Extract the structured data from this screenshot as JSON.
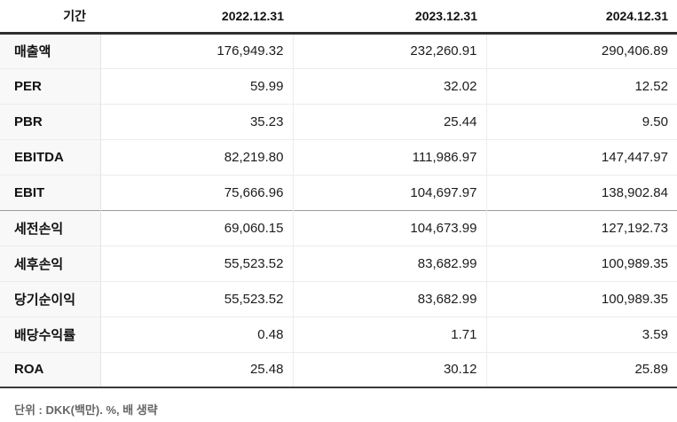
{
  "table": {
    "header": {
      "period_label": "기간",
      "columns": [
        "2022.12.31",
        "2023.12.31",
        "2024.12.31"
      ]
    },
    "rows": [
      {
        "label": "매출액",
        "values": [
          "176,949.32",
          "232,260.91",
          "290,406.89"
        ],
        "group_start": false
      },
      {
        "label": "PER",
        "values": [
          "59.99",
          "32.02",
          "12.52"
        ],
        "group_start": false
      },
      {
        "label": "PBR",
        "values": [
          "35.23",
          "25.44",
          "9.50"
        ],
        "group_start": false
      },
      {
        "label": "EBITDA",
        "values": [
          "82,219.80",
          "111,986.97",
          "147,447.97"
        ],
        "group_start": false
      },
      {
        "label": "EBIT",
        "values": [
          "75,666.96",
          "104,697.97",
          "138,902.84"
        ],
        "group_start": false
      },
      {
        "label": "세전손익",
        "values": [
          "69,060.15",
          "104,673.99",
          "127,192.73"
        ],
        "group_start": true
      },
      {
        "label": "세후손익",
        "values": [
          "55,523.52",
          "83,682.99",
          "100,989.35"
        ],
        "group_start": false
      },
      {
        "label": "당기순이익",
        "values": [
          "55,523.52",
          "83,682.99",
          "100,989.35"
        ],
        "group_start": false
      },
      {
        "label": "배당수익률",
        "values": [
          "0.48",
          "1.71",
          "3.59"
        ],
        "group_start": false
      },
      {
        "label": "ROA",
        "values": [
          "25.48",
          "30.12",
          "25.89"
        ],
        "group_start": false
      }
    ],
    "footnote": "단위 : DKK(백만). %, 배 생략"
  },
  "colors": {
    "label_column_bg": "#f8f8f8",
    "header_border": "#2e2e2e",
    "table_bottom_border": "#3a3a3a",
    "row_border": "#ececec",
    "group_border": "#9b9b9b",
    "text_primary": "#111111",
    "footnote_text": "#666666"
  }
}
